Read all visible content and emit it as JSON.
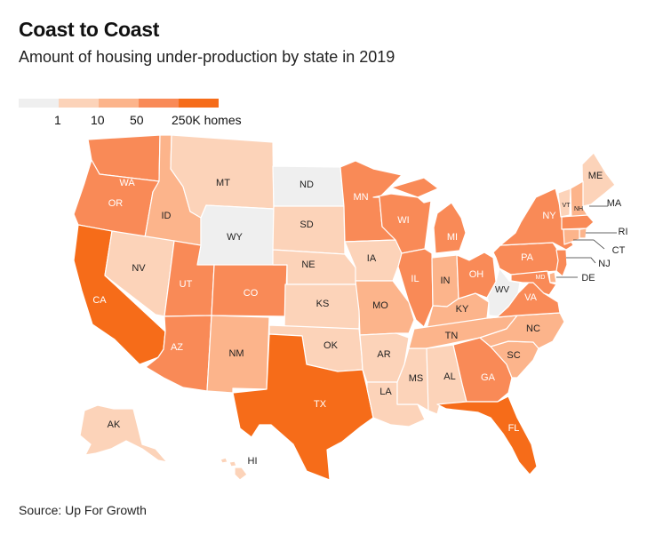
{
  "title": "Coast to Coast",
  "subtitle": "Amount of housing under-production by state in 2019",
  "legend": {
    "colors": [
      "#efefef",
      "#fcd3b9",
      "#fcb48b",
      "#f98a57",
      "#f66c19"
    ],
    "labels": [
      "1",
      "10",
      "50",
      "250K homes"
    ]
  },
  "source": "Source: Up For Growth",
  "state_labels": {
    "WA": "WA",
    "OR": "OR",
    "CA": "CA",
    "ID": "ID",
    "NV": "NV",
    "MT": "MT",
    "WY": "WY",
    "UT": "UT",
    "AZ": "AZ",
    "CO": "CO",
    "NM": "NM",
    "ND": "ND",
    "SD": "SD",
    "NE": "NE",
    "KS": "KS",
    "OK": "OK",
    "TX": "TX",
    "MN": "MN",
    "IA": "IA",
    "MO": "MO",
    "AR": "AR",
    "LA": "LA",
    "WI": "WI",
    "IL": "IL",
    "MS": "MS",
    "MI": "MI",
    "IN": "IN",
    "KY": "KY",
    "TN": "TN",
    "AL": "AL",
    "OH": "OH",
    "WV": "WV",
    "GA": "GA",
    "FL": "FL",
    "SC": "SC",
    "NC": "NC",
    "VA": "VA",
    "PA": "PA",
    "NY": "NY",
    "ME": "ME",
    "VT": "VT",
    "NH": "NH",
    "MA": "MA",
    "RI": "RI",
    "CT": "CT",
    "NJ": "NJ",
    "DE": "DE",
    "MD": "MD",
    "AK": "AK",
    "HI": "HI"
  },
  "state_tiers": {
    "WA": 3,
    "OR": 3,
    "CA": 4,
    "ID": 2,
    "NV": 1,
    "MT": 1,
    "WY": 0,
    "UT": 3,
    "AZ": 3,
    "CO": 3,
    "NM": 2,
    "ND": 0,
    "SD": 1,
    "NE": 1,
    "KS": 1,
    "OK": 1,
    "TX": 4,
    "MN": 3,
    "IA": 1,
    "MO": 2,
    "AR": 1,
    "LA": 1,
    "WI": 3,
    "IL": 3,
    "MS": 1,
    "MI": 3,
    "IN": 2,
    "KY": 2,
    "TN": 2,
    "AL": 1,
    "OH": 3,
    "WV": 0,
    "GA": 3,
    "FL": 4,
    "SC": 2,
    "NC": 2,
    "VA": 3,
    "PA": 3,
    "NY": 3,
    "ME": 1,
    "VT": 1,
    "NH": 2,
    "MA": 3,
    "RI": 2,
    "CT": 2,
    "NJ": 3,
    "DE": 2,
    "MD": 3,
    "AK": 1,
    "HI": 1
  }
}
